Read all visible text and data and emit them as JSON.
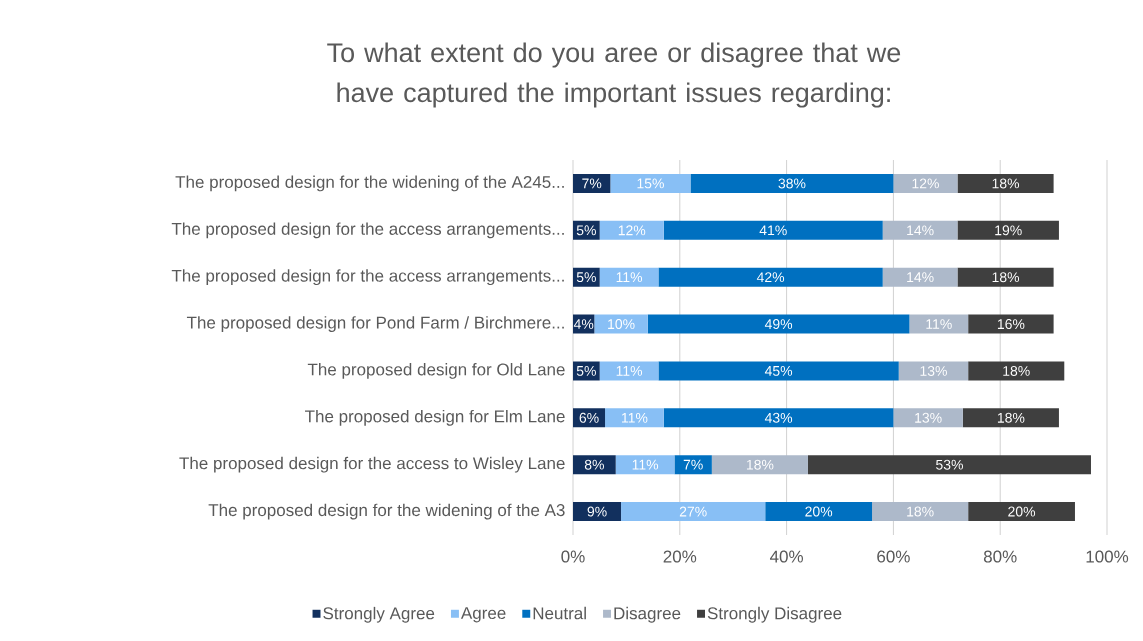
{
  "chart_data": {
    "type": "bar",
    "orientation": "horizontal",
    "stacked": true,
    "title": "To what extent do you aree or disagree that we have captured the important issues regarding:",
    "categories": [
      "The proposed design for the widening of the A245...",
      "The proposed design for the access arrangements...",
      "The proposed design for the access arrangements...",
      "The proposed design for Pond Farm / Birchmere...",
      "The proposed design for Old Lane",
      "The proposed design for Elm Lane",
      "The proposed design for the access to Wisley Lane",
      "The proposed design for the widening of the A3"
    ],
    "series": [
      {
        "name": "Strongly Agree",
        "color": "#12305e",
        "values": [
          7,
          5,
          5,
          4,
          5,
          6,
          8,
          9
        ],
        "value_labels": [
          "7%",
          "5%",
          "5%",
          "4%",
          "5%",
          "6%",
          "8%",
          "9%"
        ]
      },
      {
        "name": "Agree",
        "color": "#88bff5",
        "values": [
          15,
          12,
          11,
          10,
          11,
          11,
          11,
          27
        ],
        "value_labels": [
          "15%",
          "12%",
          "11%",
          "10%",
          "11%",
          "11%",
          "11%",
          "27%"
        ]
      },
      {
        "name": "Neutral",
        "color": "#0070c0",
        "values": [
          38,
          41,
          42,
          49,
          45,
          43,
          7,
          20
        ],
        "value_labels": [
          "38%",
          "41%",
          "42%",
          "49%",
          "45%",
          "43%",
          "7%",
          "20%"
        ]
      },
      {
        "name": "Disagree",
        "color": "#adb9ca",
        "values": [
          12,
          14,
          14,
          11,
          13,
          13,
          18,
          18
        ],
        "value_labels": [
          "12%",
          "14%",
          "14%",
          "11%",
          "13%",
          "13%",
          "18%",
          "18%"
        ]
      },
      {
        "name": "Strongly Disagree",
        "color": "#3f3f3f",
        "values": [
          18,
          19,
          18,
          16,
          18,
          18,
          53,
          20
        ],
        "value_labels": [
          "18%",
          "19%",
          "18%",
          "16%",
          "18%",
          "18%",
          "53%",
          "20%"
        ]
      }
    ],
    "xlim": [
      0,
      100
    ],
    "xticks": [
      {
        "value": 0,
        "label": "0%"
      },
      {
        "value": 20,
        "label": "20%"
      },
      {
        "value": 40,
        "label": "40%"
      },
      {
        "value": 60,
        "label": "60%"
      },
      {
        "value": 80,
        "label": "80%"
      },
      {
        "value": 100,
        "label": "100%"
      }
    ],
    "grid": "x",
    "legend": "bottom"
  }
}
